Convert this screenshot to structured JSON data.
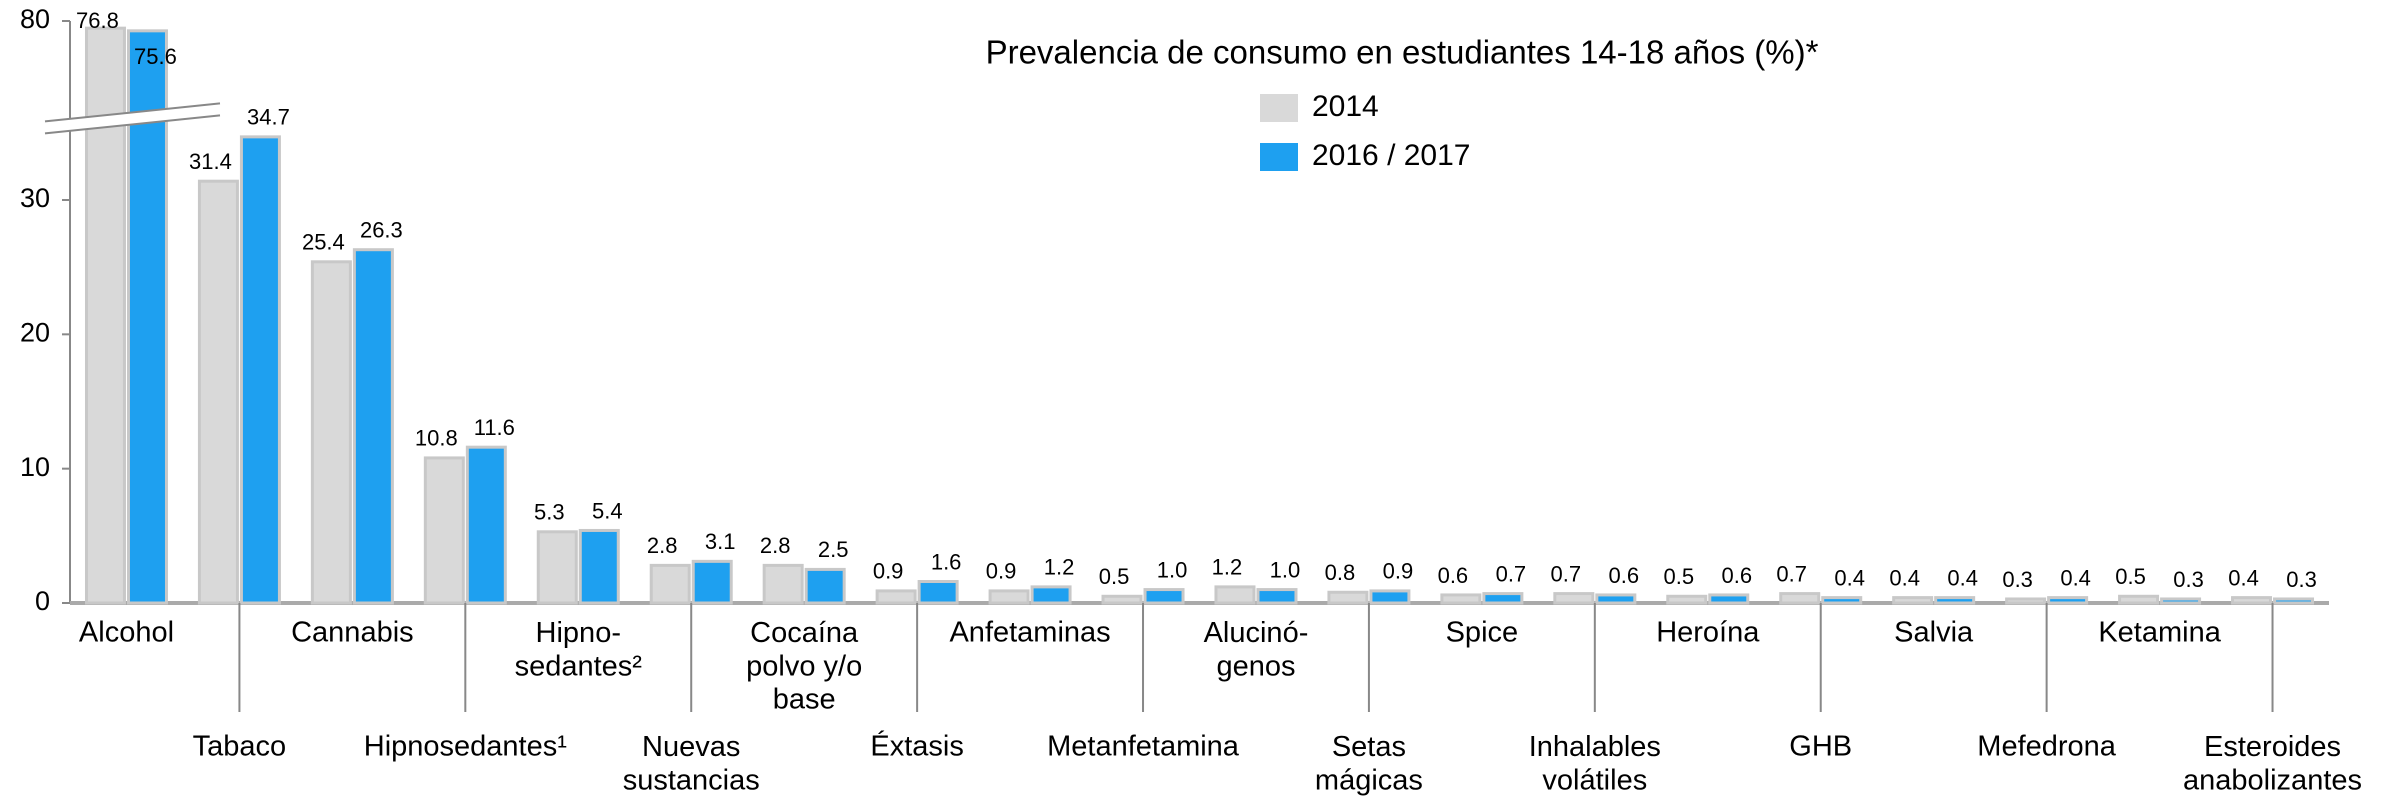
{
  "chart_data": {
    "type": "bar",
    "title": "Prevalencia de consumo en estudiantes 14-18 años (%)*",
    "categories": [
      "Alcohol",
      "Tabaco",
      "Cannabis",
      "Hipnosedantes¹",
      "Hipno-\nsedantes²",
      "Nuevas\nsustancias",
      "Cocaína\npolvo y/o\nbase",
      "Éxtasis",
      "Anfetaminas",
      "Metanfetamina",
      "Alucinó-\ngenos",
      "Setas\nmágicas",
      "Spice",
      "Inhalables\nvolátiles",
      "Heroína",
      "GHB",
      "Salvia",
      "Mefedrona",
      "Ketamina",
      "Esteroides\nanabolizantes"
    ],
    "series": [
      {
        "name": "2014",
        "color": "#d9d9d9",
        "values": [
          76.8,
          31.4,
          25.4,
          10.8,
          5.3,
          2.8,
          2.8,
          0.9,
          0.9,
          0.5,
          1.2,
          0.8,
          0.6,
          0.7,
          0.5,
          0.7,
          0.4,
          0.3,
          0.5,
          0.4
        ],
        "value_labels": [
          "76.8",
          "31.4",
          "25.4",
          "10.8",
          "5.3",
          "2.8",
          "2.8",
          "0.9",
          "0.9",
          "0.5",
          "1.2",
          "0.8",
          "0.6",
          "0.7",
          "0.5",
          "0.7",
          "0.4",
          "0.3",
          "0.5",
          "0.4"
        ]
      },
      {
        "name": "2016 / 2017",
        "color": "#1ea0f0",
        "values": [
          75.6,
          34.7,
          26.3,
          11.6,
          5.4,
          3.1,
          2.5,
          1.6,
          1.2,
          1.0,
          1.0,
          0.9,
          0.7,
          0.6,
          0.6,
          0.4,
          0.4,
          0.4,
          0.3,
          0.3
        ],
        "value_labels": [
          "75.6",
          "34.7",
          "26.3",
          "11.6",
          "5.4",
          "3.1",
          "2.5",
          "1.6",
          "1.2",
          "1.0",
          "1.0",
          "0.9",
          "0.7",
          "0.6",
          "0.6",
          "0.4",
          "0.4",
          "0.4",
          "0.3",
          "0.3"
        ]
      }
    ],
    "ylim": [
      0,
      80
    ],
    "yticks": [
      0,
      10,
      20,
      30,
      80
    ],
    "axis_break": true,
    "grid": false
  }
}
